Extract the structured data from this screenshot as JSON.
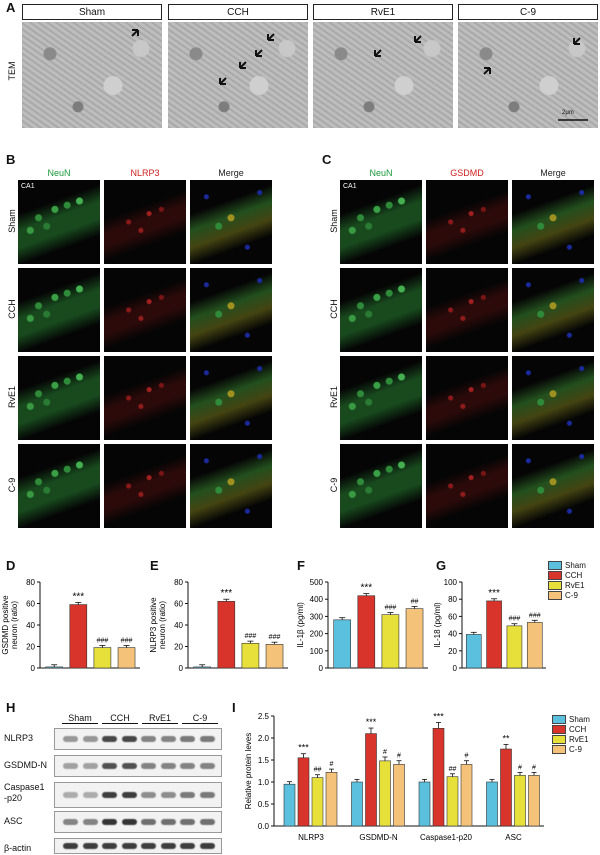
{
  "panel_labels": {
    "A": "A",
    "B": "B",
    "C": "C",
    "D": "D",
    "E": "E",
    "F": "F",
    "G": "G",
    "H": "H",
    "I": "I"
  },
  "tem": {
    "row_label": "TEM",
    "groups": [
      "Sham",
      "CCH",
      "RvE1",
      "C-9"
    ],
    "scale_text": "2μm"
  },
  "fluo_b": {
    "headers": [
      "NeuN",
      "NLRP3",
      "Merge"
    ],
    "colors": [
      "#1a9a3a",
      "#d02020",
      "#222222"
    ]
  },
  "fluo_c": {
    "headers": [
      "NeuN",
      "GSDMD",
      "Merge"
    ],
    "colors": [
      "#1a9a3a",
      "#d02020",
      "#222222"
    ]
  },
  "fluo_rows": [
    "Sham",
    "CCH",
    "RvE1",
    "C-9"
  ],
  "region_label": "CA1",
  "legend": {
    "items": [
      {
        "name": "Sham",
        "color": "#5bc0de"
      },
      {
        "name": "CCH",
        "color": "#d9342b"
      },
      {
        "name": "RvE1",
        "color": "#e8e03a"
      },
      {
        "name": "C-9",
        "color": "#f5c27a"
      }
    ]
  },
  "chart_data": [
    {
      "id": "D",
      "type": "bar",
      "ylabel": "GSDMD positive neuron (ratio)",
      "categories": [
        "Sham",
        "CCH",
        "RvE1",
        "C-9"
      ],
      "values": [
        1,
        59,
        19,
        19
      ],
      "ylim": [
        0,
        80
      ],
      "ticks": [
        0,
        20,
        40,
        60,
        80
      ],
      "sig": [
        "",
        "***",
        "###",
        "###"
      ]
    },
    {
      "id": "E",
      "type": "bar",
      "ylabel": "NLRP3 positive neuron (ratio)",
      "categories": [
        "Sham",
        "CCH",
        "RvE1",
        "C-9"
      ],
      "values": [
        1,
        62,
        23,
        22
      ],
      "ylim": [
        0,
        80
      ],
      "ticks": [
        0,
        20,
        40,
        60,
        80
      ],
      "sig": [
        "",
        "***",
        "###",
        "###"
      ]
    },
    {
      "id": "F",
      "type": "bar",
      "ylabel": "IL-1β (pg/ml)",
      "categories": [
        "Sham",
        "CCH",
        "RvE1",
        "C-9"
      ],
      "values": [
        280,
        420,
        310,
        345
      ],
      "ylim": [
        0,
        500
      ],
      "ticks": [
        0,
        100,
        200,
        300,
        400,
        500
      ],
      "sig": [
        "",
        "***",
        "###",
        "##"
      ]
    },
    {
      "id": "G",
      "type": "bar",
      "ylabel": "IL-18 (pg/ml)",
      "categories": [
        "Sham",
        "CCH",
        "RvE1",
        "C-9"
      ],
      "values": [
        39,
        78,
        49,
        53
      ],
      "ylim": [
        0,
        100
      ],
      "ticks": [
        0,
        20,
        40,
        60,
        80,
        100
      ],
      "sig": [
        "",
        "***",
        "###",
        "###"
      ]
    },
    {
      "id": "I",
      "type": "bar",
      "ylabel": "Relative protein leves",
      "categories": [
        "NLRP3",
        "GSDMD-N",
        "Caspase1-p20",
        "ASC"
      ],
      "ylim": [
        0,
        2.5
      ],
      "ticks": [
        "0.0",
        "0.5",
        "1.0",
        "1.5",
        "2.0",
        "2.5"
      ],
      "series": [
        {
          "name": "Sham",
          "values": [
            0.95,
            1.0,
            1.0,
            1.0
          ]
        },
        {
          "name": "CCH",
          "values": [
            1.55,
            2.1,
            2.22,
            1.75
          ]
        },
        {
          "name": "RvE1",
          "values": [
            1.1,
            1.48,
            1.12,
            1.15
          ]
        },
        {
          "name": "C-9",
          "values": [
            1.22,
            1.4,
            1.4,
            1.15
          ]
        }
      ],
      "sig": [
        [
          "",
          "***",
          "##",
          "#"
        ],
        [
          "",
          "***",
          "#",
          "#"
        ],
        [
          "",
          "***",
          "##",
          "#"
        ],
        [
          "",
          "**",
          "#",
          "#"
        ]
      ]
    }
  ],
  "western": {
    "groups": [
      "Sham",
      "CCH",
      "RvE1",
      "C-9"
    ],
    "rows": [
      "NLRP3",
      "GSDMD-N",
      "Caspase1\n-p20",
      "ASC",
      "β-actin"
    ]
  }
}
